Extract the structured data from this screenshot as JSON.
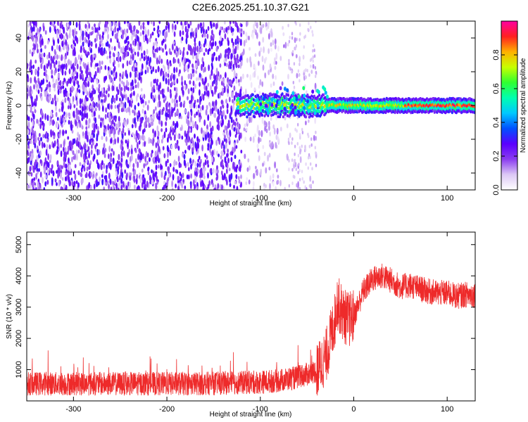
{
  "title": "C2E6.2025.251.10.37.G21",
  "chart_data": [
    {
      "type": "heatmap",
      "xlabel": "Height of straight line (km)",
      "ylabel": "Frequency (Hz)",
      "xlim": [
        -350,
        130
      ],
      "ylim": [
        -50,
        50
      ],
      "x_ticks": [
        -300,
        -200,
        -100,
        0,
        100
      ],
      "y_ticks": [
        -40,
        -20,
        0,
        20,
        40
      ],
      "colorbar": {
        "label": "Normalized spectral amplitude",
        "range": [
          0,
          1
        ],
        "ticks": [
          "0.0",
          "0.2",
          "0.4",
          "0.6",
          "0.8"
        ],
        "colors": [
          "#ffffff",
          "#dcc8f5",
          "#8a3cf0",
          "#5a00ff",
          "#0050ff",
          "#00c8ff",
          "#00ffb0",
          "#30ff30",
          "#c8ff00",
          "#ffb000",
          "#ff2020",
          "#ff00a0"
        ]
      },
      "regions": [
        {
          "x_range": [
            -350,
            -120
          ],
          "description": "noise",
          "amplitude_range": [
            0.1,
            0.3
          ]
        },
        {
          "x_range": [
            -120,
            -40
          ],
          "description": "sparse noise",
          "amplitude_range": [
            0.0,
            0.15
          ]
        },
        {
          "x_range": [
            -125,
            130
          ],
          "frequency_hz": 0,
          "description": "signal band",
          "amplitude_range": [
            0.4,
            1.0
          ]
        }
      ]
    },
    {
      "type": "line",
      "xlabel": "Height of straight line (km)",
      "ylabel": "SNR (10 * v/v)",
      "xlim": [
        -350,
        130
      ],
      "ylim": [
        0,
        5400
      ],
      "x_ticks": [
        -300,
        -200,
        -100,
        0,
        100
      ],
      "y_ticks": [
        1000,
        2000,
        3000,
        4000,
        5000
      ],
      "line_color": "#ee2a2a",
      "series": [
        {
          "x": [
            -350,
            -300,
            -250,
            -200,
            -150,
            -100,
            -80,
            -60,
            -50,
            -40,
            -30,
            -25,
            -20,
            -18,
            -15,
            -10,
            -5,
            0,
            5,
            10,
            20,
            30,
            40,
            50,
            60,
            70,
            80,
            90,
            100,
            110,
            120,
            130
          ],
          "values": [
            550,
            550,
            550,
            550,
            560,
            600,
            650,
            750,
            850,
            950,
            1400,
            2000,
            2600,
            3200,
            3000,
            2700,
            2600,
            2700,
            3100,
            3500,
            3900,
            4000,
            3850,
            3650,
            3700,
            3600,
            3500,
            3450,
            3450,
            3350,
            3400,
            3400
          ]
        }
      ]
    }
  ]
}
